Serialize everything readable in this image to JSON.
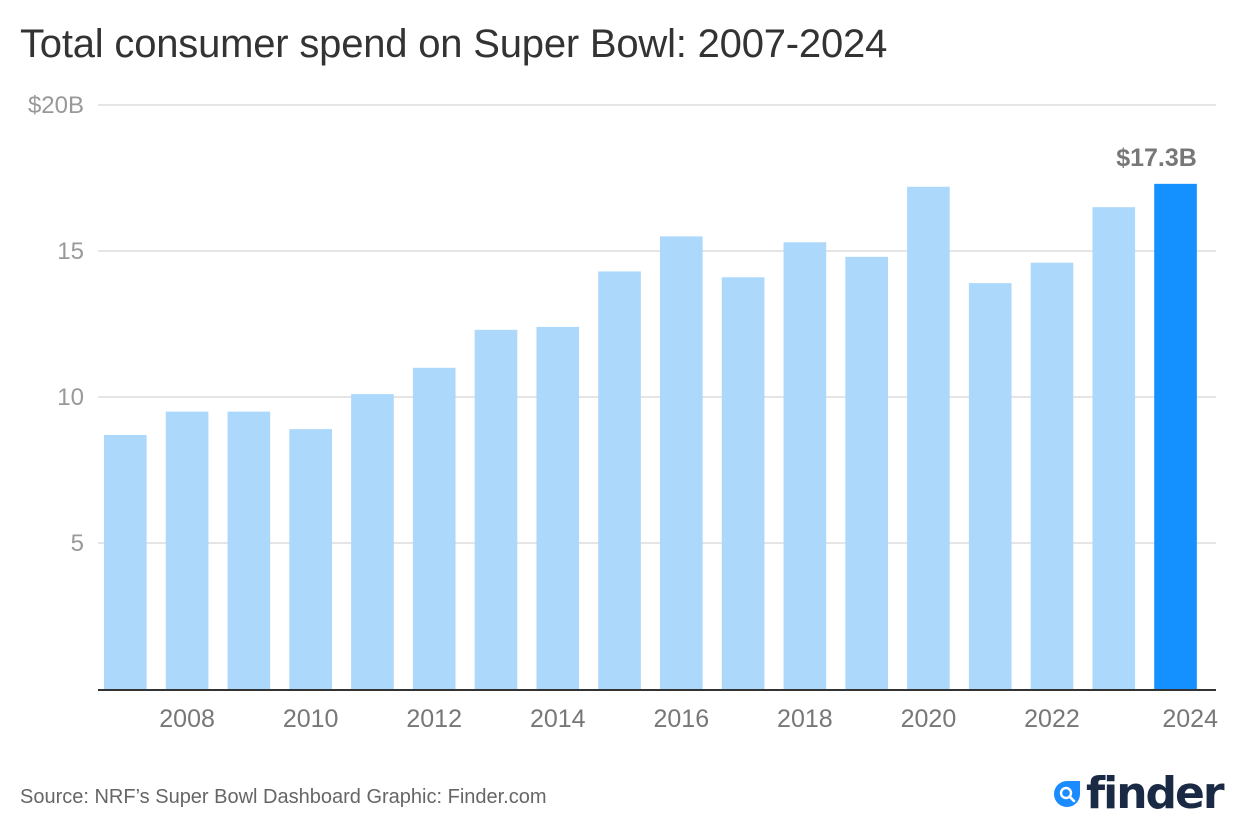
{
  "title": "Total consumer spend on Super Bowl: 2007-2024",
  "source": "Source: NRF’s Super Bowl Dashboard Graphic: Finder.com",
  "logo": {
    "name": "finder",
    "icon": "search-drop-icon",
    "color": "#1a8cff",
    "text_color": "#1a2a44"
  },
  "colors": {
    "bar": "#acd8fc",
    "highlight": "#1590ff",
    "grid": "#e5e5e5",
    "axis": "#333333",
    "tick_text": "#999999",
    "xtick_text": "#777777",
    "label_text": "#777777"
  },
  "chart_data": {
    "type": "bar",
    "title": "Total consumer spend on Super Bowl: 2007-2024",
    "xlabel": "",
    "ylabel": "",
    "categories": [
      "2007",
      "2008",
      "2009",
      "2010",
      "2011",
      "2012",
      "2013",
      "2014",
      "2015",
      "2016",
      "2017",
      "2018",
      "2019",
      "2020",
      "2021",
      "2022",
      "2023",
      "2024"
    ],
    "values": [
      8.7,
      9.5,
      9.5,
      8.9,
      10.1,
      11.0,
      12.3,
      12.4,
      14.3,
      15.5,
      14.1,
      15.3,
      14.8,
      17.2,
      13.9,
      14.6,
      16.5,
      17.3
    ],
    "units": "billion USD",
    "ylim": [
      0,
      20
    ],
    "yticks": [
      5,
      10,
      15,
      20
    ],
    "ytick_labels": [
      "5",
      "10",
      "15",
      "$20B"
    ],
    "xtick_labels": [
      "2008",
      "2010",
      "2012",
      "2014",
      "2016",
      "2018",
      "2020",
      "2022",
      "2024"
    ],
    "highlight_category": "2024",
    "annotations": [
      {
        "category": "2024",
        "text": "$17.3B"
      }
    ],
    "grid": true,
    "legend": "none"
  }
}
